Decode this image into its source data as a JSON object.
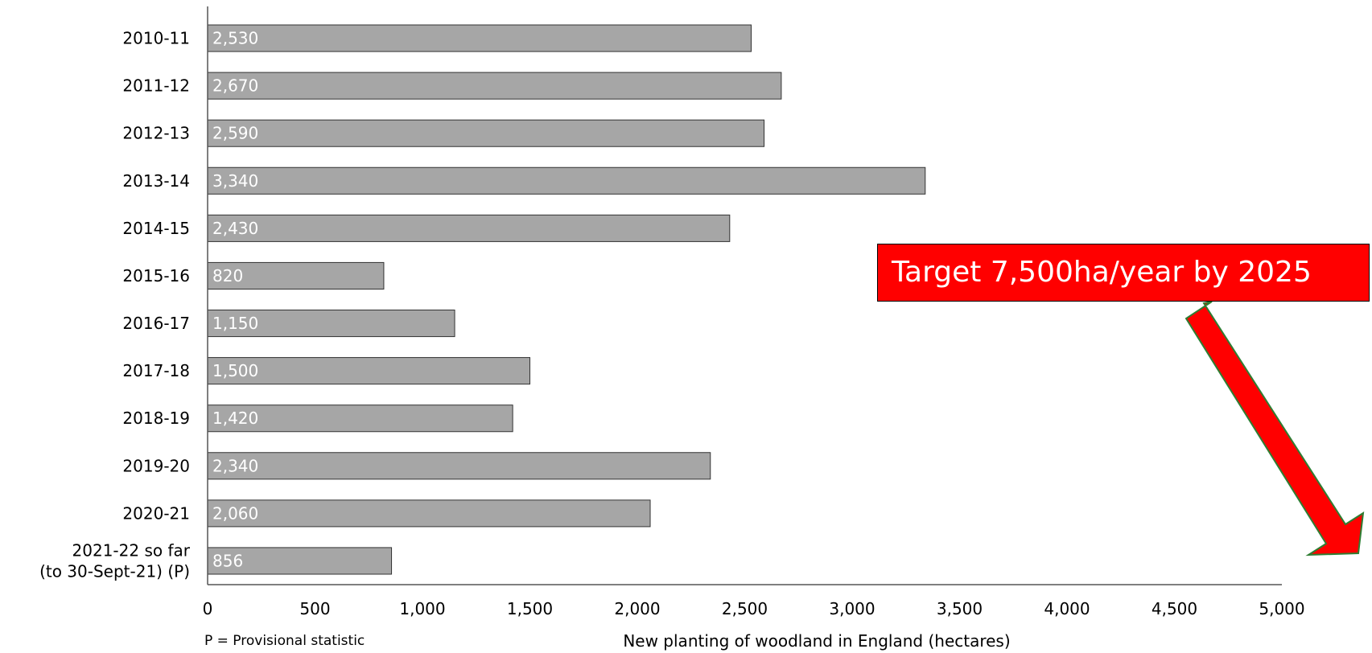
{
  "chart_data": {
    "type": "bar",
    "orientation": "horizontal",
    "categories": [
      "2010-11",
      "2011-12",
      "2012-13",
      "2013-14",
      "2014-15",
      "2015-16",
      "2016-17",
      "2017-18",
      "2018-19",
      "2019-20",
      "2020-21",
      "2021-22 so far\n(to 30-Sept-21) (P)"
    ],
    "values": [
      2530,
      2670,
      2590,
      3340,
      2430,
      820,
      1150,
      1500,
      1420,
      2340,
      2060,
      856
    ],
    "value_labels": [
      "2,530",
      "2,670",
      "2,590",
      "3,340",
      "2,430",
      "820",
      "1,150",
      "1,500",
      "1,420",
      "2,340",
      "2,060",
      "856"
    ],
    "xlabel": "New planting of woodland in England (hectares)",
    "ylabel": "",
    "xlim": [
      0,
      5000
    ],
    "xticks": [
      0,
      500,
      1000,
      1500,
      2000,
      2500,
      3000,
      3500,
      4000,
      4500,
      5000
    ],
    "xtick_labels": [
      "0",
      "500",
      "1,000",
      "1,500",
      "2,000",
      "2,500",
      "3,000",
      "3,500",
      "4,000",
      "4,500",
      "5,000"
    ],
    "grid": false,
    "bar_color": "#a6a6a6",
    "note": "P = Provisional statistic",
    "annotation": {
      "text": "Target 7,500ha/year by 2025",
      "box_color": "#ff0000",
      "arrow_color": "#ff0000",
      "arrow_border_color": "#2e7d32"
    }
  }
}
